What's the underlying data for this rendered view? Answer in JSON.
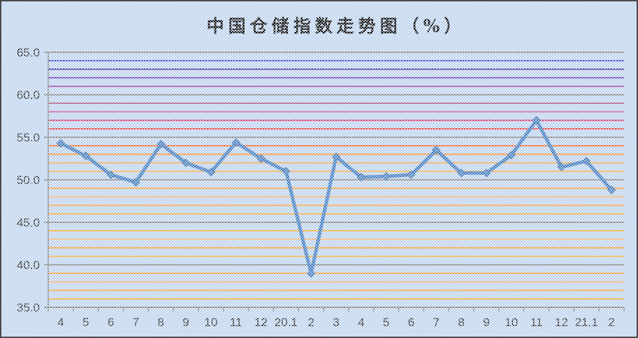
{
  "title": "中国仓储指数走势图（%）",
  "window": {
    "border_color": "#4a4a4a",
    "background_color": "#bdd3ee",
    "texture": "white-dot-checker"
  },
  "chart_data": {
    "type": "line",
    "title": "中国仓储指数走势图（%）",
    "series_name": "中国仓储指数",
    "categories": [
      "4",
      "5",
      "6",
      "7",
      "8",
      "9",
      "10",
      "11",
      "12",
      "20.1",
      "2",
      "3",
      "4",
      "5",
      "6",
      "7",
      "8",
      "9",
      "10",
      "11",
      "12",
      "21.1",
      "2"
    ],
    "values": [
      54.3,
      52.8,
      50.6,
      49.7,
      54.2,
      52.0,
      50.9,
      54.4,
      52.5,
      51.0,
      39.0,
      52.7,
      50.3,
      50.4,
      50.6,
      53.5,
      50.8,
      50.8,
      52.9,
      57.0,
      51.5,
      52.2,
      48.8
    ],
    "ylim": [
      35.0,
      65.0
    ],
    "y_major_tick_interval": 5,
    "y_tick_labels": [
      "65.0",
      "60.0",
      "55.0",
      "50.0",
      "45.0",
      "40.0",
      "35.0"
    ],
    "grid": "horizontal-every-unit",
    "legend_position": "none",
    "line_color": "#3e79bf",
    "marker": "diamond",
    "marker_fill": "#4681c3",
    "marker_stroke": "#2e5f96",
    "axis_color": "#808080",
    "major_grid_color": "#848484",
    "label_color": "#1f1f1f",
    "minor_gridlines": [
      {
        "value": 64,
        "color": "#3030c0"
      },
      {
        "value": 63,
        "color": "#300f96"
      },
      {
        "value": 62,
        "color": "#6020b0"
      },
      {
        "value": 61,
        "color": "#8c1c96"
      },
      {
        "value": 59,
        "color": "#a13366"
      },
      {
        "value": 58,
        "color": "#c94287"
      },
      {
        "value": 57,
        "color": "#dd1a55"
      },
      {
        "value": 56,
        "color": "#f01e1e"
      },
      {
        "value": 54,
        "color": "#ff4a00"
      },
      {
        "value": 53,
        "color": "#ff7f00"
      },
      {
        "value": 52,
        "color": "#f99b30"
      },
      {
        "value": 51,
        "color": "#ffa21e"
      },
      {
        "value": 49,
        "color": "#ff8a00"
      },
      {
        "value": 48,
        "color": "#f9a956"
      },
      {
        "value": 47,
        "color": "#ff941e"
      },
      {
        "value": 46,
        "color": "#ff9c00"
      },
      {
        "value": 44,
        "color": "#ff9c00"
      },
      {
        "value": 43,
        "color": "#f9a956"
      },
      {
        "value": 42,
        "color": "#ff8a00"
      },
      {
        "value": 41,
        "color": "#ffa21e"
      },
      {
        "value": 39,
        "color": "#ff8a00"
      },
      {
        "value": 38,
        "color": "#f9a956"
      },
      {
        "value": 37,
        "color": "#ff941e"
      },
      {
        "value": 36,
        "color": "#ff9c00"
      }
    ]
  }
}
